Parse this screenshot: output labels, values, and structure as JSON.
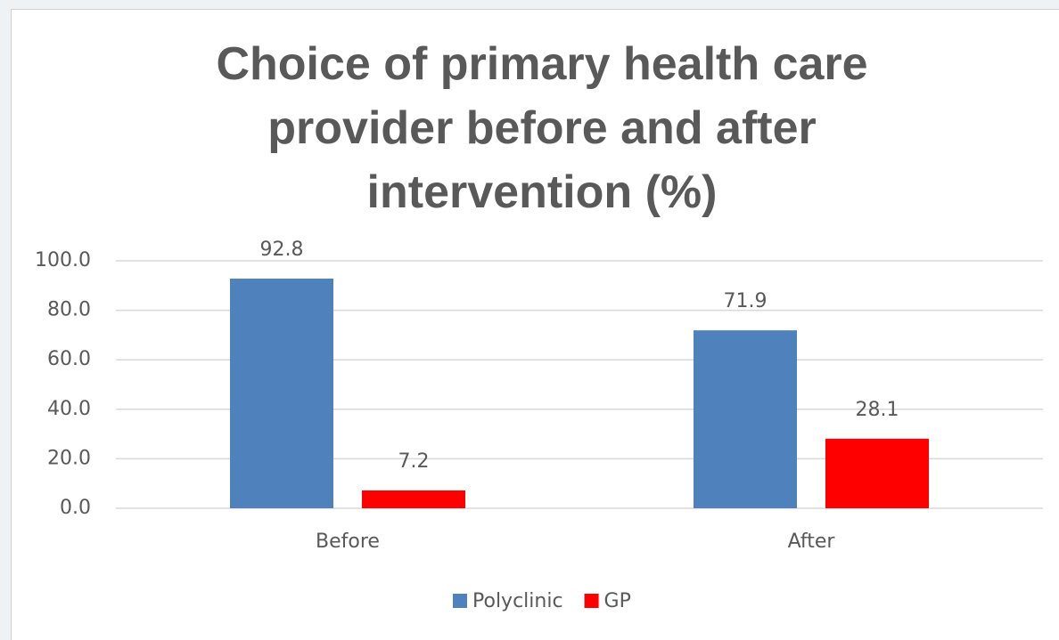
{
  "chart_data": {
    "type": "bar",
    "title": "Choice of primary health care provider before and after intervention (%)",
    "categories": [
      "Before",
      "After"
    ],
    "series": [
      {
        "name": "Polyclinic",
        "color": "#4f81bd",
        "values": [
          92.8,
          71.9
        ]
      },
      {
        "name": "GP",
        "color": "#ff0000",
        "values": [
          7.2,
          28.1
        ]
      }
    ],
    "ylim": [
      0,
      100
    ],
    "yticks": [
      {
        "value": 0,
        "label": "0.0"
      },
      {
        "value": 20,
        "label": "20.0"
      },
      {
        "value": 40,
        "label": "40.0"
      },
      {
        "value": 60,
        "label": "60.0"
      },
      {
        "value": 80,
        "label": "80.0"
      },
      {
        "value": 100,
        "label": "100.0"
      }
    ],
    "grid": true,
    "legend": "bottom"
  }
}
